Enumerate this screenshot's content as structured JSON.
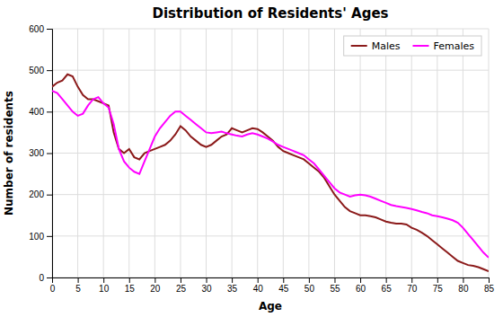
{
  "chart_data": {
    "type": "line",
    "title": "Distribution of Residents' Ages",
    "xlabel": "Age",
    "ylabel": "Number of residents",
    "x": [
      0,
      1,
      2,
      3,
      4,
      5,
      6,
      7,
      8,
      9,
      10,
      11,
      12,
      13,
      14,
      15,
      16,
      17,
      18,
      19,
      20,
      21,
      22,
      23,
      24,
      25,
      26,
      27,
      28,
      29,
      30,
      31,
      32,
      33,
      34,
      35,
      36,
      37,
      38,
      39,
      40,
      41,
      42,
      43,
      44,
      45,
      46,
      47,
      48,
      49,
      50,
      51,
      52,
      53,
      54,
      55,
      56,
      57,
      58,
      59,
      60,
      61,
      62,
      63,
      64,
      65,
      66,
      67,
      68,
      69,
      70,
      71,
      72,
      73,
      74,
      75,
      76,
      77,
      78,
      79,
      80,
      81,
      82,
      83,
      84,
      85
    ],
    "series": [
      {
        "name": "Males",
        "color": "#8b1a1a",
        "values": [
          460,
          470,
          475,
          490,
          485,
          460,
          440,
          430,
          430,
          425,
          420,
          415,
          350,
          310,
          300,
          310,
          290,
          285,
          300,
          305,
          310,
          315,
          320,
          330,
          345,
          365,
          355,
          340,
          330,
          320,
          315,
          320,
          330,
          340,
          345,
          360,
          355,
          350,
          355,
          360,
          358,
          350,
          340,
          330,
          315,
          305,
          300,
          295,
          290,
          285,
          275,
          265,
          255,
          240,
          220,
          200,
          185,
          170,
          160,
          155,
          150,
          150,
          148,
          145,
          140,
          135,
          132,
          130,
          130,
          128,
          120,
          115,
          108,
          100,
          90,
          80,
          70,
          60,
          50,
          40,
          35,
          30,
          28,
          25,
          20,
          15
        ]
      },
      {
        "name": "Females",
        "color": "#ff00ff",
        "values": [
          450,
          445,
          430,
          415,
          400,
          390,
          395,
          415,
          430,
          435,
          420,
          410,
          370,
          310,
          280,
          265,
          255,
          250,
          280,
          310,
          340,
          360,
          375,
          390,
          400,
          400,
          390,
          380,
          370,
          360,
          350,
          348,
          350,
          352,
          348,
          345,
          342,
          340,
          345,
          348,
          345,
          340,
          335,
          328,
          320,
          315,
          310,
          305,
          300,
          295,
          285,
          275,
          260,
          245,
          230,
          215,
          205,
          200,
          195,
          198,
          200,
          198,
          195,
          190,
          185,
          180,
          175,
          172,
          170,
          168,
          165,
          162,
          158,
          155,
          150,
          148,
          145,
          142,
          138,
          132,
          120,
          105,
          90,
          75,
          60,
          48
        ]
      }
    ],
    "xlim": [
      0,
      85
    ],
    "ylim": [
      0,
      600
    ],
    "xticks": [
      0,
      5,
      10,
      15,
      20,
      25,
      30,
      35,
      40,
      45,
      50,
      55,
      60,
      65,
      70,
      75,
      80,
      85
    ],
    "yticks": [
      0,
      100,
      200,
      300,
      400,
      500,
      600
    ],
    "grid": true,
    "legend": "upper right"
  }
}
